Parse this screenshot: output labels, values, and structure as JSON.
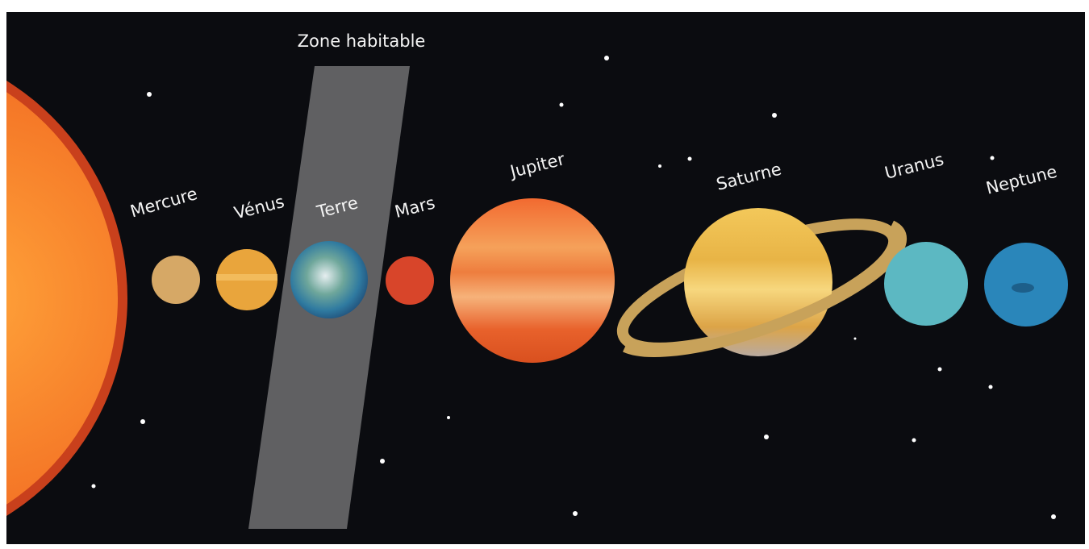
{
  "zone": {
    "label": "Zone habitable"
  },
  "planets": [
    {
      "label": "Mercure"
    },
    {
      "label": "Vénus"
    },
    {
      "label": "Terre"
    },
    {
      "label": "Mars"
    },
    {
      "label": "Jupiter"
    },
    {
      "label": "Saturne"
    },
    {
      "label": "Uranus"
    },
    {
      "label": "Neptune"
    }
  ]
}
